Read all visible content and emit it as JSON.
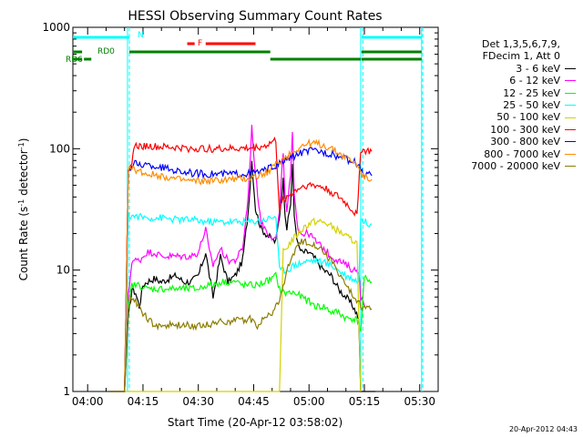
{
  "chart_data": {
    "type": "line",
    "title": "HESSI Observing Summary Count Rates",
    "ylabel_main": "Count Rate (s",
    "ylabel_sup1": "-1",
    "ylabel_mid": " detector",
    "ylabel_sup2": "-1",
    "ylabel_end": ")",
    "xlabel": "Start Time (20-Apr-12 03:58:02)",
    "x_ticks": [
      "04:00",
      "04:15",
      "04:30",
      "04:45",
      "05:00",
      "05:15",
      "05:30"
    ],
    "x_tick_minutes": [
      0,
      15,
      30,
      45,
      60,
      75,
      90
    ],
    "xlim": [
      -4,
      95
    ],
    "y_ticks": [
      "1",
      "10",
      "100",
      "1000"
    ],
    "y_tick_values": [
      1,
      10,
      100,
      1000
    ],
    "ylim": [
      1,
      1000
    ],
    "yscale": "log",
    "legend_header": [
      "Det 1,3,5,6,7,9,",
      "FDecim 1, Att 0"
    ],
    "series": [
      {
        "name": "3 - 6 keV",
        "color": "#000000",
        "points": [
          [
            6,
            1
          ],
          [
            10,
            1
          ],
          [
            11,
            4
          ],
          [
            12,
            7
          ],
          [
            13,
            6.5
          ],
          [
            14,
            5
          ],
          [
            15,
            7.5
          ],
          [
            16,
            8
          ],
          [
            18,
            8.5
          ],
          [
            20,
            8
          ],
          [
            22,
            8.5
          ],
          [
            24,
            9
          ],
          [
            26,
            8
          ],
          [
            28,
            8
          ],
          [
            30,
            9
          ],
          [
            32,
            14
          ],
          [
            33,
            9
          ],
          [
            34,
            6
          ],
          [
            36,
            13
          ],
          [
            38,
            8
          ],
          [
            40,
            9
          ],
          [
            42,
            12
          ],
          [
            43.5,
            30
          ],
          [
            44.5,
            80
          ],
          [
            45.5,
            32
          ],
          [
            47,
            22
          ],
          [
            49,
            19
          ],
          [
            51,
            17
          ],
          [
            52,
            28
          ],
          [
            53,
            55
          ],
          [
            53.5,
            30
          ],
          [
            54,
            22
          ],
          [
            55,
            35
          ],
          [
            55.5,
            75
          ],
          [
            56,
            28
          ],
          [
            57,
            16
          ],
          [
            58,
            14
          ],
          [
            60,
            14
          ],
          [
            62,
            12
          ],
          [
            64,
            10
          ],
          [
            66,
            9
          ],
          [
            68,
            7
          ],
          [
            70,
            6
          ],
          [
            72,
            5
          ],
          [
            73.5,
            4
          ],
          [
            74,
            1
          ],
          [
            78,
            1
          ]
        ]
      },
      {
        "name": "6 - 12 keV",
        "color": "#ff00ff",
        "points": [
          [
            6,
            1
          ],
          [
            10,
            1
          ],
          [
            11,
            6
          ],
          [
            12,
            12
          ],
          [
            14,
            12
          ],
          [
            16,
            14
          ],
          [
            18,
            14
          ],
          [
            20,
            13
          ],
          [
            22,
            13
          ],
          [
            24,
            13
          ],
          [
            26,
            13
          ],
          [
            28,
            13
          ],
          [
            30,
            14
          ],
          [
            32,
            22
          ],
          [
            33,
            14
          ],
          [
            34,
            11
          ],
          [
            36,
            15
          ],
          [
            38,
            12
          ],
          [
            40,
            12
          ],
          [
            42,
            15
          ],
          [
            43.5,
            40
          ],
          [
            44.5,
            150
          ],
          [
            45.5,
            60
          ],
          [
            47,
            25
          ],
          [
            49,
            20
          ],
          [
            51,
            18
          ],
          [
            52,
            30
          ],
          [
            53,
            95
          ],
          [
            53.5,
            40
          ],
          [
            54,
            30
          ],
          [
            55,
            60
          ],
          [
            55.5,
            130
          ],
          [
            56,
            45
          ],
          [
            57,
            22
          ],
          [
            58,
            20
          ],
          [
            60,
            20
          ],
          [
            62,
            17
          ],
          [
            64,
            15
          ],
          [
            66,
            13
          ],
          [
            68,
            12
          ],
          [
            70,
            11
          ],
          [
            72,
            10
          ],
          [
            73.5,
            10
          ],
          [
            74,
            6
          ],
          [
            75,
            5
          ]
        ]
      },
      {
        "name": "12 - 25 keV",
        "color": "#00ff00",
        "points": [
          [
            6,
            1
          ],
          [
            10,
            1
          ],
          [
            11,
            5
          ],
          [
            12,
            7.5
          ],
          [
            14,
            7.5
          ],
          [
            16,
            7
          ],
          [
            18,
            7
          ],
          [
            20,
            7
          ],
          [
            22,
            7
          ],
          [
            24,
            7
          ],
          [
            26,
            7
          ],
          [
            28,
            7
          ],
          [
            30,
            7
          ],
          [
            32,
            7.5
          ],
          [
            34,
            7.5
          ],
          [
            36,
            8
          ],
          [
            38,
            8
          ],
          [
            40,
            8
          ],
          [
            42,
            7.5
          ],
          [
            44,
            7.5
          ],
          [
            46,
            7.5
          ],
          [
            48,
            8
          ],
          [
            50,
            8.5
          ],
          [
            51,
            9
          ],
          [
            52,
            7
          ],
          [
            53,
            6.5
          ],
          [
            54,
            6.5
          ],
          [
            56,
            6.5
          ],
          [
            58,
            6
          ],
          [
            60,
            5.5
          ],
          [
            62,
            5
          ],
          [
            64,
            5
          ],
          [
            66,
            4.5
          ],
          [
            68,
            4.5
          ],
          [
            70,
            4
          ],
          [
            72,
            4
          ],
          [
            73.5,
            3.8
          ],
          [
            74,
            3
          ],
          [
            75,
            8.5
          ],
          [
            76,
            8.5
          ],
          [
            77,
            8
          ]
        ]
      },
      {
        "name": "25 - 50 keV",
        "color": "#00ffff",
        "points": [
          [
            6,
            1
          ],
          [
            10,
            1
          ],
          [
            11,
            28
          ],
          [
            12,
            28
          ],
          [
            16,
            27
          ],
          [
            20,
            27
          ],
          [
            24,
            26
          ],
          [
            28,
            26
          ],
          [
            32,
            25
          ],
          [
            36,
            25
          ],
          [
            40,
            25
          ],
          [
            44,
            25
          ],
          [
            48,
            26
          ],
          [
            51,
            28
          ],
          [
            52,
            10
          ],
          [
            54,
            10
          ],
          [
            56,
            11
          ],
          [
            58,
            11.5
          ],
          [
            60,
            12
          ],
          [
            62,
            12
          ],
          [
            64,
            11.5
          ],
          [
            66,
            11
          ],
          [
            68,
            10
          ],
          [
            70,
            9
          ],
          [
            72,
            8.5
          ],
          [
            73.5,
            8
          ],
          [
            74,
            26
          ],
          [
            75,
            25
          ],
          [
            77,
            24
          ]
        ]
      },
      {
        "name": "50 - 100 keV",
        "color": "#d2d200",
        "points": [
          [
            10,
            1
          ],
          [
            11,
            1
          ],
          [
            52,
            1
          ],
          [
            53,
            14
          ],
          [
            55,
            17
          ],
          [
            57,
            20
          ],
          [
            59,
            23
          ],
          [
            61,
            25
          ],
          [
            63,
            25
          ],
          [
            65,
            24
          ],
          [
            67,
            22
          ],
          [
            69,
            20
          ],
          [
            71,
            18
          ],
          [
            73,
            17
          ],
          [
            74,
            1
          ]
        ]
      },
      {
        "name": "100 - 300 keV",
        "color": "#ff0000",
        "points": [
          [
            6,
            1
          ],
          [
            10,
            1
          ],
          [
            11,
            70
          ],
          [
            12,
            70
          ],
          [
            12.5,
            105
          ],
          [
            16,
            105
          ],
          [
            20,
            103
          ],
          [
            24,
            102
          ],
          [
            28,
            100
          ],
          [
            32,
            100
          ],
          [
            36,
            100
          ],
          [
            40,
            100
          ],
          [
            44,
            101
          ],
          [
            48,
            105
          ],
          [
            51,
            118
          ],
          [
            52,
            30
          ],
          [
            53,
            38
          ],
          [
            55,
            42
          ],
          [
            57,
            47
          ],
          [
            59,
            50
          ],
          [
            61,
            50
          ],
          [
            63,
            49
          ],
          [
            65,
            46
          ],
          [
            67,
            42
          ],
          [
            69,
            38
          ],
          [
            71,
            33
          ],
          [
            73,
            28
          ],
          [
            74,
            98
          ],
          [
            75,
            96
          ],
          [
            77,
            95
          ]
        ]
      },
      {
        "name": "300 - 800 keV",
        "color": "#0000ff",
        "points": [
          [
            6,
            1
          ],
          [
            10,
            1
          ],
          [
            11,
            70
          ],
          [
            12,
            70
          ],
          [
            12.5,
            75
          ],
          [
            16,
            73
          ],
          [
            20,
            70
          ],
          [
            24,
            66
          ],
          [
            28,
            63
          ],
          [
            32,
            62
          ],
          [
            36,
            62
          ],
          [
            40,
            62
          ],
          [
            44,
            63
          ],
          [
            48,
            66
          ],
          [
            52,
            75
          ],
          [
            55,
            85
          ],
          [
            58,
            93
          ],
          [
            60,
            96
          ],
          [
            62,
            96
          ],
          [
            64,
            94
          ],
          [
            66,
            90
          ],
          [
            68,
            86
          ],
          [
            70,
            82
          ],
          [
            72,
            78
          ],
          [
            73.5,
            75
          ],
          [
            74,
            65
          ],
          [
            75,
            62
          ],
          [
            77,
            60
          ]
        ]
      },
      {
        "name": "800 - 7000 keV",
        "color": "#ff8c00",
        "points": [
          [
            6,
            1
          ],
          [
            10,
            1
          ],
          [
            11,
            68
          ],
          [
            12,
            68
          ],
          [
            12.5,
            68
          ],
          [
            16,
            62
          ],
          [
            20,
            60
          ],
          [
            24,
            56
          ],
          [
            28,
            54
          ],
          [
            32,
            54
          ],
          [
            36,
            55
          ],
          [
            40,
            56
          ],
          [
            44,
            57
          ],
          [
            48,
            62
          ],
          [
            52,
            78
          ],
          [
            55,
            92
          ],
          [
            58,
            105
          ],
          [
            60,
            110
          ],
          [
            62,
            110
          ],
          [
            64,
            106
          ],
          [
            66,
            100
          ],
          [
            68,
            92
          ],
          [
            70,
            85
          ],
          [
            72,
            78
          ],
          [
            73.5,
            72
          ],
          [
            74,
            62
          ],
          [
            75,
            58
          ],
          [
            77,
            56
          ]
        ]
      },
      {
        "name": "7000 - 20000 keV",
        "color": "#8b7d00",
        "points": [
          [
            6,
            1
          ],
          [
            10,
            1
          ],
          [
            11,
            5
          ],
          [
            12,
            6
          ],
          [
            13,
            5.5
          ],
          [
            16,
            4
          ],
          [
            18,
            3.5
          ],
          [
            20,
            3.5
          ],
          [
            24,
            3.5
          ],
          [
            28,
            3.5
          ],
          [
            32,
            3.5
          ],
          [
            36,
            3.8
          ],
          [
            40,
            3.8
          ],
          [
            44,
            4
          ],
          [
            46,
            3.5
          ],
          [
            48,
            4
          ],
          [
            50,
            4.5
          ],
          [
            51,
            5
          ],
          [
            52,
            5.5
          ],
          [
            54,
            10
          ],
          [
            56,
            14
          ],
          [
            58,
            17
          ],
          [
            60,
            17
          ],
          [
            62,
            16
          ],
          [
            64,
            14
          ],
          [
            66,
            12
          ],
          [
            68,
            9.5
          ],
          [
            70,
            7.5
          ],
          [
            72,
            6
          ],
          [
            73.5,
            5.5
          ],
          [
            74,
            5
          ],
          [
            75,
            5
          ],
          [
            77,
            4.8
          ]
        ]
      }
    ],
    "bar_rows": [
      {
        "label": "N",
        "color": "#00ffff",
        "segments": [
          [
            -4,
            11.3
          ],
          [
            74.2,
            90.5
          ]
        ]
      },
      {
        "label": "F",
        "color": "#ff0000",
        "segments": [
          [
            27,
            29
          ],
          [
            32,
            45.5
          ]
        ]
      },
      {
        "label": "RD0",
        "color": "#008000",
        "segments": [
          [
            -4,
            -1.5
          ],
          [
            11.3,
            49.5
          ],
          [
            74.2,
            90.5
          ]
        ]
      },
      {
        "label": "RD6",
        "color": "#008000",
        "segments": [
          [
            -4,
            -1.5
          ],
          [
            -1,
            1
          ],
          [
            49.5,
            74
          ],
          [
            74.2,
            90.5
          ]
        ]
      }
    ],
    "vlines_solid": [
      10.8,
      74.0,
      90.5
    ],
    "vlines_dashed": [
      11.3,
      74.6,
      90.8
    ],
    "footer_stamp": "20-Apr-2012 04:43"
  }
}
